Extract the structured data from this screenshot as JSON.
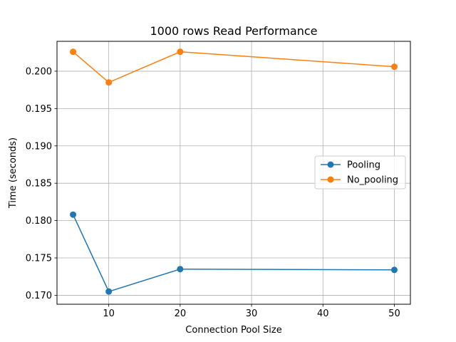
{
  "chart_data": {
    "type": "line",
    "title": "1000 rows Read Performance",
    "xlabel": "Connection Pool Size",
    "ylabel": "Time (seconds)",
    "x": [
      5,
      10,
      20,
      50
    ],
    "xlim": [
      2.75,
      52.25
    ],
    "ylim": [
      0.1688,
      0.204
    ],
    "xticks": [
      10,
      20,
      30,
      40,
      50
    ],
    "yticks": [
      0.17,
      0.175,
      0.18,
      0.185,
      0.19,
      0.195,
      0.2
    ],
    "xtick_labels": [
      "10",
      "20",
      "30",
      "40",
      "50"
    ],
    "ytick_labels": [
      "0.170",
      "0.175",
      "0.180",
      "0.185",
      "0.190",
      "0.195",
      "0.200"
    ],
    "grid": true,
    "legend_position": "center-right",
    "series": [
      {
        "name": "Pooling",
        "color": "#1f77b4",
        "values": [
          0.1808,
          0.1705,
          0.1735,
          0.1734
        ]
      },
      {
        "name": "No_pooling",
        "color": "#ff7f0e",
        "values": [
          0.2026,
          0.1985,
          0.2026,
          0.2006
        ]
      }
    ]
  }
}
